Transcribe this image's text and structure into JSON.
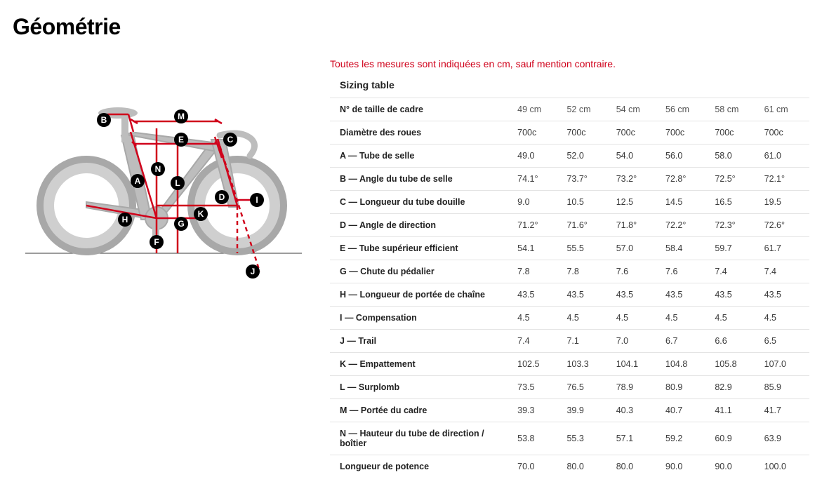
{
  "title": "Géométrie",
  "notice": "Toutes les mesures sont indiquées en cm, sauf mention contraire.",
  "sizing_title": "Sizing table",
  "diagram": {
    "type": "diagram",
    "line_color": "#d0021b",
    "line_width": 2.5,
    "dash_color": "#d0021b",
    "bike_color": "#bfbfbf",
    "bike_stroke": "#a8a8a8",
    "background_color": "#ffffff",
    "ground_color": "#606060",
    "label_bg": "#000000",
    "label_text": "#ffffff",
    "labels": [
      "A",
      "B",
      "C",
      "D",
      "E",
      "F",
      "G",
      "H",
      "I",
      "J",
      "K",
      "L",
      "M",
      "N"
    ]
  },
  "table": {
    "type": "table",
    "header_label": "N° de taille de cadre",
    "columns": [
      "49 cm",
      "52 cm",
      "54 cm",
      "56 cm",
      "58 cm",
      "61 cm"
    ],
    "rows": [
      {
        "label": "Diamètre des roues",
        "vals": [
          "700c",
          "700c",
          "700c",
          "700c",
          "700c",
          "700c"
        ]
      },
      {
        "label": "A — Tube de selle",
        "vals": [
          "49.0",
          "52.0",
          "54.0",
          "56.0",
          "58.0",
          "61.0"
        ]
      },
      {
        "label": "B — Angle du tube de selle",
        "vals": [
          "74.1°",
          "73.7°",
          "73.2°",
          "72.8°",
          "72.5°",
          "72.1°"
        ]
      },
      {
        "label": "C — Longueur du tube douille",
        "vals": [
          "9.0",
          "10.5",
          "12.5",
          "14.5",
          "16.5",
          "19.5"
        ]
      },
      {
        "label": "D — Angle de direction",
        "vals": [
          "71.2°",
          "71.6°",
          "71.8°",
          "72.2°",
          "72.3°",
          "72.6°"
        ]
      },
      {
        "label": "E — Tube supérieur efficient",
        "vals": [
          "54.1",
          "55.5",
          "57.0",
          "58.4",
          "59.7",
          "61.7"
        ]
      },
      {
        "label": "G — Chute du pédalier",
        "vals": [
          "7.8",
          "7.8",
          "7.6",
          "7.6",
          "7.4",
          "7.4"
        ]
      },
      {
        "label": "H — Longueur de portée de chaîne",
        "vals": [
          "43.5",
          "43.5",
          "43.5",
          "43.5",
          "43.5",
          "43.5"
        ]
      },
      {
        "label": "I — Compensation",
        "vals": [
          "4.5",
          "4.5",
          "4.5",
          "4.5",
          "4.5",
          "4.5"
        ]
      },
      {
        "label": "J — Trail",
        "vals": [
          "7.4",
          "7.1",
          "7.0",
          "6.7",
          "6.6",
          "6.5"
        ]
      },
      {
        "label": "K — Empattement",
        "vals": [
          "102.5",
          "103.3",
          "104.1",
          "104.8",
          "105.8",
          "107.0"
        ]
      },
      {
        "label": "L — Surplomb",
        "vals": [
          "73.5",
          "76.5",
          "78.9",
          "80.9",
          "82.9",
          "85.9"
        ]
      },
      {
        "label": "M — Portée du cadre",
        "vals": [
          "39.3",
          "39.9",
          "40.3",
          "40.7",
          "41.1",
          "41.7"
        ]
      },
      {
        "label": "N — Hauteur du tube de direction / boîtier",
        "vals": [
          "53.8",
          "55.3",
          "57.1",
          "59.2",
          "60.9",
          "63.9"
        ]
      },
      {
        "label": "Longueur de potence",
        "vals": [
          "70.0",
          "80.0",
          "80.0",
          "90.0",
          "90.0",
          "100.0"
        ]
      }
    ],
    "cell_fontsize": 12.5,
    "border_color": "#e4e4e4",
    "text_color": "#3a3a3a",
    "header_text_color": "#222222"
  }
}
